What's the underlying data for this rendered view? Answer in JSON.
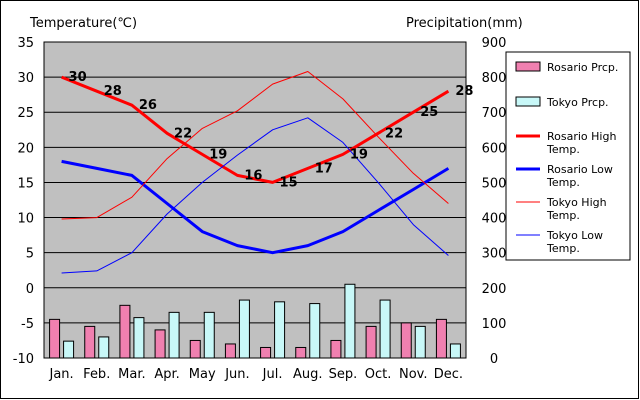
{
  "chart_data": {
    "type": "bar",
    "left_axis_title": "Temperature(℃)",
    "right_axis_title": "Precipitation(mm)",
    "categories": [
      "Jan.",
      "Feb.",
      "Mar.",
      "Apr.",
      "May",
      "Jun.",
      "Jul.",
      "Aug.",
      "Sep.",
      "Oct.",
      "Nov.",
      "Dec."
    ],
    "left_ylim": [
      -10,
      35
    ],
    "left_yticks": [
      "-10",
      "-5",
      "0",
      "5",
      "10",
      "15",
      "20",
      "25",
      "30",
      "35"
    ],
    "right_ylim": [
      0,
      900
    ],
    "right_yticks": [
      "0",
      "100",
      "200",
      "300",
      "400",
      "500",
      "600",
      "700",
      "800",
      "900"
    ],
    "grid": true,
    "legend_position": "right",
    "bar_series": [
      {
        "name": "Rosario Prcp.",
        "color": "#f080b0",
        "values": [
          110,
          90,
          150,
          80,
          50,
          40,
          30,
          30,
          50,
          90,
          100,
          110
        ]
      },
      {
        "name": "Tokyo Prcp.",
        "color": "#c8f8f8",
        "values": [
          48,
          60,
          115,
          130,
          130,
          165,
          160,
          155,
          210,
          165,
          90,
          40
        ]
      }
    ],
    "line_series": [
      {
        "name": "Rosario High Temp.",
        "color": "#ff0000",
        "values": [
          30,
          28,
          26,
          22,
          19,
          16,
          15,
          17,
          19,
          22,
          25,
          28
        ],
        "value_labels": [
          "30",
          "28",
          "26",
          "22",
          "19",
          "16",
          "15",
          "17",
          "19",
          "22",
          "25",
          "28"
        ]
      },
      {
        "name": "Rosario Low Temp.",
        "color": "#0000ff",
        "values": [
          18,
          17,
          16,
          12,
          8,
          6,
          5,
          6,
          8,
          11,
          14,
          17
        ]
      },
      {
        "name": "Tokyo High Temp.",
        "color": "#ff0000",
        "values": [
          9.8,
          10,
          12.9,
          18.4,
          22.7,
          25.2,
          29,
          30.8,
          26.9,
          21.5,
          16.3,
          12
        ]
      },
      {
        "name": "Tokyo Low Temp.",
        "color": "#0000ff",
        "values": [
          2.1,
          2.4,
          5,
          10.5,
          15,
          18.9,
          22.5,
          24.2,
          20.7,
          15,
          9,
          4.6
        ]
      }
    ]
  }
}
